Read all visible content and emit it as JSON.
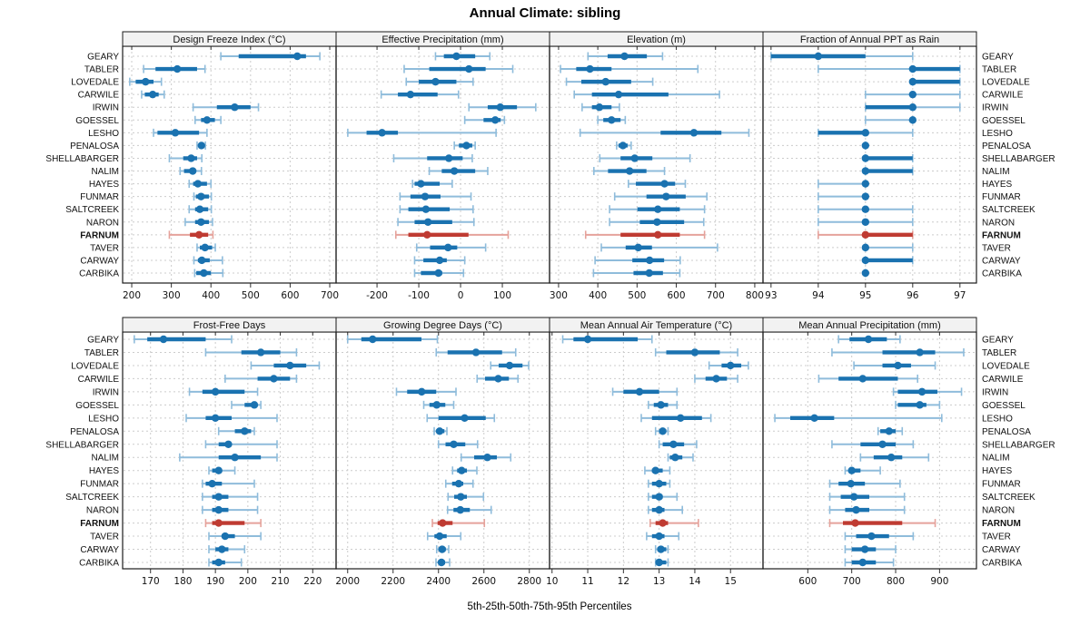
{
  "chart_data": {
    "type": "trellis-percentile-dotplot",
    "title": "Annual Climate: sibling",
    "caption": "5th-25th-50th-75th-95th Percentiles",
    "percentile_labels": [
      "5th",
      "25th",
      "50th",
      "75th",
      "95th"
    ],
    "legend_position": "none",
    "grid": "dashed",
    "highlight_location": "FARNUM",
    "colors": {
      "blue": "#1a72b0",
      "blue_light": "#8fbcdb",
      "red": "#bf3b32",
      "red_light": "#e5a29b",
      "grid": "#cccccc",
      "header_bg": "#f2f2f2",
      "border": "#1a1a1a",
      "tick": "#333333"
    },
    "locations": [
      "GEARY",
      "TABLER",
      "LOVEDALE",
      "CARWILE",
      "IRWIN",
      "GOESSEL",
      "LESHO",
      "PENALOSA",
      "SHELLABARGER",
      "NALIM",
      "HAYES",
      "FUNMAR",
      "SALTCREEK",
      "NARON",
      "FARNUM",
      "TAVER",
      "CARWAY",
      "CARBIKA"
    ],
    "panels": [
      {
        "title": "Design Freeze Index (°C)",
        "grid_row": 0,
        "grid_col": 0,
        "ticks": [
          200,
          300,
          400,
          500,
          600,
          700
        ],
        "xlim": [
          177,
          716
        ],
        "values": [
          [
            425,
            470,
            618,
            640,
            675
          ],
          [
            230,
            260,
            315,
            365,
            385
          ],
          [
            195,
            210,
            235,
            255,
            275
          ],
          [
            225,
            233,
            253,
            268,
            282
          ],
          [
            355,
            415,
            460,
            500,
            520
          ],
          [
            360,
            375,
            390,
            410,
            425
          ],
          [
            255,
            265,
            310,
            370,
            390
          ],
          [
            365,
            370,
            376,
            381,
            386
          ],
          [
            295,
            330,
            350,
            365,
            377
          ],
          [
            322,
            332,
            354,
            362,
            376
          ],
          [
            345,
            355,
            367,
            390,
            400
          ],
          [
            357,
            362,
            375,
            395,
            401
          ],
          [
            345,
            360,
            372,
            393,
            401
          ],
          [
            335,
            360,
            375,
            395,
            404
          ],
          [
            295,
            347,
            370,
            393,
            405
          ],
          [
            365,
            372,
            385,
            403,
            411
          ],
          [
            357,
            367,
            377,
            397,
            429
          ],
          [
            359,
            363,
            382,
            400,
            430
          ]
        ]
      },
      {
        "title": "Effective Precipitation (mm)",
        "grid_row": 0,
        "grid_col": 1,
        "ticks": [
          -200,
          -100,
          0,
          100
        ],
        "xlim": [
          -298,
          213
        ],
        "values": [
          [
            -60,
            -40,
            -10,
            35,
            70
          ],
          [
            -135,
            -75,
            20,
            60,
            125
          ],
          [
            -130,
            -100,
            -60,
            -10,
            30
          ],
          [
            -190,
            -150,
            -120,
            -55,
            -5
          ],
          [
            20,
            65,
            95,
            135,
            180
          ],
          [
            10,
            55,
            83,
            96,
            105
          ],
          [
            -270,
            -225,
            -188,
            -150,
            85
          ],
          [
            -15,
            -4,
            14,
            28,
            35
          ],
          [
            -160,
            -80,
            -28,
            5,
            28
          ],
          [
            -75,
            -45,
            -15,
            35,
            65
          ],
          [
            -115,
            -110,
            -95,
            -50,
            -20
          ],
          [
            -145,
            -120,
            -85,
            -48,
            25
          ],
          [
            -145,
            -125,
            -83,
            -26,
            30
          ],
          [
            -150,
            -110,
            -78,
            -20,
            32
          ],
          [
            -155,
            -125,
            -80,
            19,
            114
          ],
          [
            -105,
            -73,
            -30,
            -8,
            60
          ],
          [
            -110,
            -89,
            -50,
            -33,
            10
          ],
          [
            -110,
            -95,
            -53,
            -44,
            7
          ]
        ]
      },
      {
        "title": "Elevation (m)",
        "grid_row": 0,
        "grid_col": 2,
        "ticks": [
          300,
          400,
          500,
          600,
          700,
          800
        ],
        "xlim": [
          277,
          821
        ],
        "values": [
          [
            375,
            425,
            468,
            525,
            565
          ],
          [
            305,
            345,
            380,
            435,
            655
          ],
          [
            320,
            358,
            420,
            485,
            540
          ],
          [
            340,
            385,
            453,
            580,
            710
          ],
          [
            360,
            385,
            404,
            435,
            455
          ],
          [
            400,
            414,
            435,
            458,
            470
          ],
          [
            355,
            560,
            645,
            715,
            785
          ],
          [
            448,
            453,
            464,
            476,
            485
          ],
          [
            405,
            458,
            494,
            539,
            635
          ],
          [
            390,
            426,
            481,
            524,
            570
          ],
          [
            478,
            497,
            570,
            597,
            623
          ],
          [
            443,
            524,
            574,
            624,
            678
          ],
          [
            430,
            501,
            553,
            609,
            672
          ],
          [
            430,
            507,
            551,
            620,
            670
          ],
          [
            369,
            458,
            553,
            609,
            672
          ],
          [
            409,
            471,
            503,
            538,
            705
          ],
          [
            393,
            488,
            532,
            569,
            610
          ],
          [
            389,
            491,
            531,
            566,
            609
          ]
        ]
      },
      {
        "title": "Fraction of Annual PPT as Rain",
        "grid_row": 0,
        "grid_col": 3,
        "ticks": [
          93,
          94,
          95,
          96,
          97
        ],
        "xlim": [
          92.83,
          97.35
        ],
        "values": [
          [
            93,
            93,
            94,
            95,
            96
          ],
          [
            94,
            96,
            96,
            97,
            97
          ],
          [
            96,
            96,
            96,
            97,
            97
          ],
          [
            95,
            96,
            96,
            96,
            97
          ],
          [
            95,
            95,
            96,
            96,
            97
          ],
          [
            95,
            96,
            96,
            96,
            96
          ],
          [
            94,
            94,
            95,
            95,
            96
          ],
          [
            95,
            95,
            95,
            95,
            95
          ],
          [
            95,
            95,
            95,
            96,
            96
          ],
          [
            95,
            95,
            95,
            96,
            96
          ],
          [
            94,
            95,
            95,
            95,
            95
          ],
          [
            94,
            95,
            95,
            95,
            95
          ],
          [
            94,
            95,
            95,
            95,
            96
          ],
          [
            94,
            95,
            95,
            95,
            96
          ],
          [
            94,
            95,
            95,
            96,
            96
          ],
          [
            95,
            95,
            95,
            95,
            96
          ],
          [
            95,
            95,
            95,
            96,
            96
          ],
          [
            95,
            95,
            95,
            95,
            95
          ]
        ]
      },
      {
        "title": "Frost-Free Days",
        "grid_row": 1,
        "grid_col": 0,
        "ticks": [
          170,
          180,
          190,
          200,
          210,
          220
        ],
        "xlim": [
          161.4,
          227.2
        ],
        "values": [
          [
            165,
            169,
            174,
            187,
            195
          ],
          [
            187,
            198,
            204,
            210,
            215
          ],
          [
            201,
            208,
            213,
            218,
            222
          ],
          [
            193,
            203,
            208,
            213,
            215
          ],
          [
            182,
            186,
            190,
            199,
            203
          ],
          [
            195,
            199,
            202,
            203,
            204
          ],
          [
            181,
            187,
            190,
            195,
            209
          ],
          [
            191,
            196,
            199,
            201,
            202
          ],
          [
            187,
            191,
            194,
            195,
            209
          ],
          [
            179,
            191,
            196,
            204,
            209
          ],
          [
            188,
            189,
            191,
            192,
            196
          ],
          [
            186,
            187,
            189,
            192,
            202
          ],
          [
            186,
            189,
            191,
            194,
            203
          ],
          [
            186,
            189,
            191,
            194,
            203
          ],
          [
            187,
            189,
            191,
            199,
            204
          ],
          [
            188,
            192,
            193,
            196,
            204
          ],
          [
            188,
            190,
            192,
            194,
            199
          ],
          [
            188,
            189,
            191,
            193,
            198
          ]
        ]
      },
      {
        "title": "Growing Degree Days (°C)",
        "grid_row": 1,
        "grid_col": 1,
        "ticks": [
          2000,
          2200,
          2400,
          2600,
          2800
        ],
        "xlim": [
          1949,
          2889
        ],
        "values": [
          [
            2000,
            2060,
            2110,
            2325,
            2395
          ],
          [
            2390,
            2440,
            2565,
            2680,
            2740
          ],
          [
            2630,
            2665,
            2713,
            2770,
            2797
          ],
          [
            2570,
            2605,
            2663,
            2710,
            2750
          ],
          [
            2215,
            2262,
            2326,
            2390,
            2477
          ],
          [
            2335,
            2360,
            2392,
            2430,
            2467
          ],
          [
            2350,
            2400,
            2515,
            2608,
            2646
          ],
          [
            2381,
            2390,
            2405,
            2426,
            2437
          ],
          [
            2400,
            2431,
            2467,
            2518,
            2572
          ],
          [
            2500,
            2557,
            2615,
            2657,
            2718
          ],
          [
            2462,
            2482,
            2502,
            2525,
            2569
          ],
          [
            2432,
            2460,
            2489,
            2509,
            2552
          ],
          [
            2442,
            2469,
            2498,
            2525,
            2598
          ],
          [
            2440,
            2466,
            2496,
            2538,
            2632
          ],
          [
            2373,
            2396,
            2418,
            2462,
            2602
          ],
          [
            2352,
            2382,
            2405,
            2436,
            2498
          ],
          [
            2392,
            2400,
            2416,
            2432,
            2445
          ],
          [
            2389,
            2400,
            2413,
            2429,
            2449
          ]
        ]
      },
      {
        "title": "Mean Annual Air Temperature (°C)",
        "grid_row": 1,
        "grid_col": 2,
        "ticks": [
          10,
          11,
          12,
          13,
          14,
          15
        ],
        "xlim": [
          9.93,
          15.91
        ],
        "values": [
          [
            10.3,
            10.6,
            11.0,
            12.4,
            12.8
          ],
          [
            12.9,
            13.2,
            14.0,
            14.7,
            15.2
          ],
          [
            14.4,
            14.75,
            15.0,
            15.3,
            15.5
          ],
          [
            14.0,
            14.3,
            14.6,
            14.9,
            15.2
          ],
          [
            11.7,
            12.0,
            12.45,
            13.0,
            13.5
          ],
          [
            12.7,
            12.85,
            13.05,
            13.25,
            13.5
          ],
          [
            12.5,
            12.8,
            13.6,
            14.2,
            14.45
          ],
          [
            12.9,
            13.0,
            13.1,
            13.2,
            13.25
          ],
          [
            13.0,
            13.1,
            13.4,
            13.7,
            14.05
          ],
          [
            13.25,
            13.3,
            13.45,
            13.65,
            13.95
          ],
          [
            12.6,
            12.8,
            12.9,
            13.1,
            13.3
          ],
          [
            12.7,
            12.8,
            13.0,
            13.2,
            13.3
          ],
          [
            12.7,
            12.8,
            13.0,
            13.1,
            13.5
          ],
          [
            12.7,
            12.8,
            13.0,
            13.15,
            13.65
          ],
          [
            12.75,
            12.9,
            13.1,
            13.25,
            14.1
          ],
          [
            12.65,
            12.8,
            13.0,
            13.15,
            13.55
          ],
          [
            12.9,
            12.95,
            13.05,
            13.2,
            13.25
          ],
          [
            12.9,
            12.95,
            13.0,
            13.2,
            13.25
          ]
        ]
      },
      {
        "title": "Mean Annual Precipitation (mm)",
        "grid_row": 1,
        "grid_col": 3,
        "ticks": [
          600,
          700,
          800,
          900
        ],
        "xlim": [
          498,
          984
        ],
        "values": [
          [
            670,
            695,
            738,
            780,
            810
          ],
          [
            655,
            770,
            855,
            890,
            955
          ],
          [
            705,
            770,
            805,
            835,
            890
          ],
          [
            625,
            670,
            725,
            805,
            850
          ],
          [
            795,
            805,
            860,
            895,
            950
          ],
          [
            800,
            805,
            855,
            870,
            900
          ],
          [
            525,
            560,
            615,
            660,
            905
          ],
          [
            760,
            765,
            785,
            800,
            815
          ],
          [
            655,
            720,
            770,
            800,
            840
          ],
          [
            720,
            750,
            790,
            815,
            875
          ],
          [
            685,
            695,
            700,
            720,
            765
          ],
          [
            650,
            670,
            698,
            730,
            810
          ],
          [
            650,
            675,
            705,
            740,
            820
          ],
          [
            650,
            685,
            710,
            740,
            820
          ],
          [
            650,
            680,
            708,
            815,
            890
          ],
          [
            685,
            710,
            745,
            785,
            840
          ],
          [
            685,
            700,
            730,
            755,
            800
          ],
          [
            685,
            700,
            725,
            755,
            795
          ]
        ]
      }
    ]
  }
}
